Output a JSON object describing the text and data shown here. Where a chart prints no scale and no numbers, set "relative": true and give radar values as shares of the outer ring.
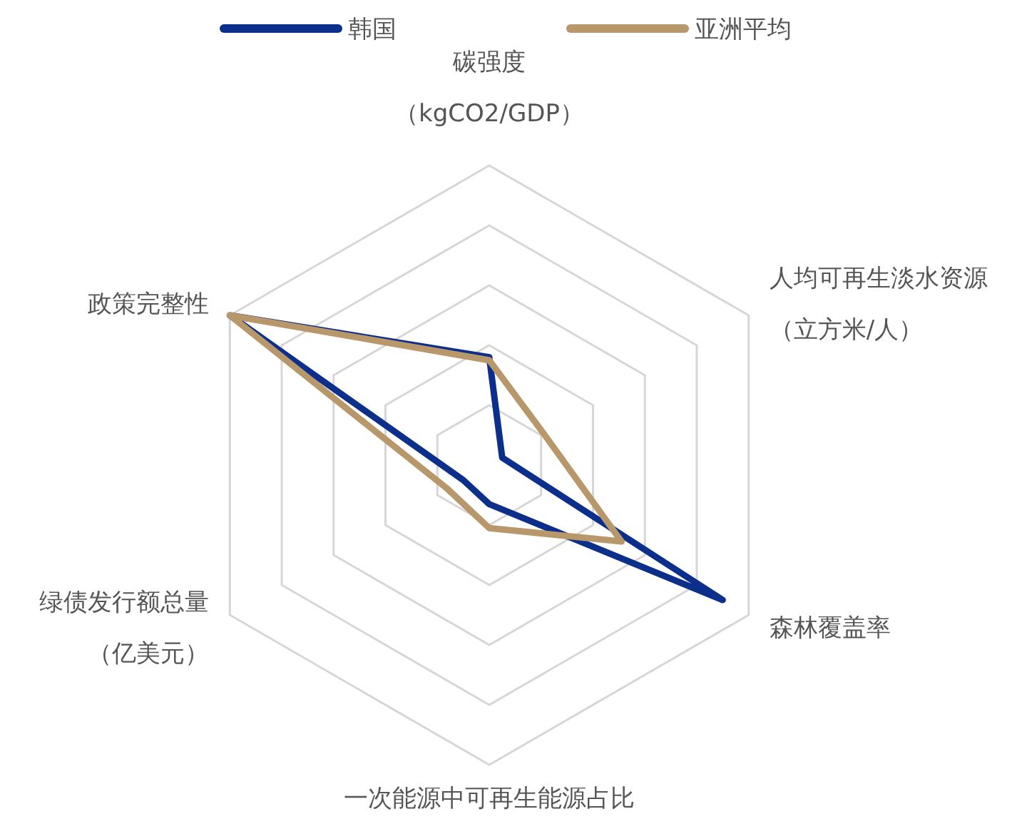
{
  "chart_data": {
    "type": "radar",
    "relative": true,
    "grid": true,
    "legend": "top",
    "categories": [
      "碳强度（kgCO2/GDP）",
      "人均可再生淡水资源（立方米/人）",
      "森林覆盖率",
      "一次能源中可再生能源占比",
      "绿债发行额总量（亿美元）",
      "政策完整性"
    ],
    "series": [
      {
        "name": "韩国",
        "color": "#0d2f8c",
        "values": [
          0.36,
          0.05,
          0.9,
          0.13,
          0.1,
          1.0
        ]
      },
      {
        "name": "亚洲平均",
        "color": "#b8976a",
        "values": [
          0.35,
          0.21,
          0.51,
          0.21,
          0.16,
          1.0
        ]
      }
    ]
  }
}
